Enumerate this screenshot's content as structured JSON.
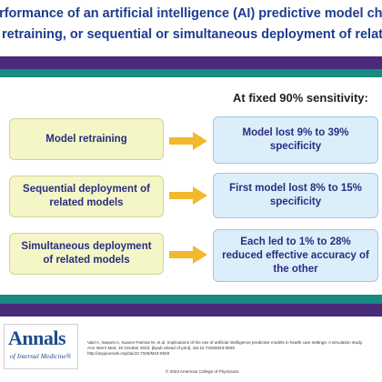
{
  "title": {
    "line1": "es performance of an artificial intelligence (AI) predictive model change wit",
    "line2": "retraining, or sequential or simultaneous deployment of related models?"
  },
  "heading": "At fixed 90% sensitivity:",
  "rows": [
    {
      "left": "Model retraining",
      "right": "Model lost 9% to 39% specificity"
    },
    {
      "left": "Sequential deployment of related models",
      "right": "First model lost 8% to 15% specificity"
    },
    {
      "left": "Simultaneous deployment of related models",
      "right": "Each led to 1% to 28% reduced effective accuracy of the other"
    }
  ],
  "footer": {
    "logo_main": "Annals",
    "logo_sub": "of Internal Medicine®",
    "citation_line1": "Vaid A, Sawant A, Suarez-Farinas M, et al. Implications of the use of artificial intelligence predictive models in health care settings: A simulation study.",
    "citation_line2": "Ann Intern Med. 10 October 2023. [Epub ahead of print]. doi:10.7326/M23-0949",
    "citation_line3": "http://acpjournals.org/doi/10.7326/M23-0949",
    "copyright": "© 2023 American College of Physicians"
  },
  "colors": {
    "title": "#1e3d8f",
    "band_purple": "#4a2a7a",
    "band_teal": "#178a82",
    "left_box": "#f4f6c6",
    "right_box": "#dceefa",
    "arrow": "#f2b92c"
  }
}
